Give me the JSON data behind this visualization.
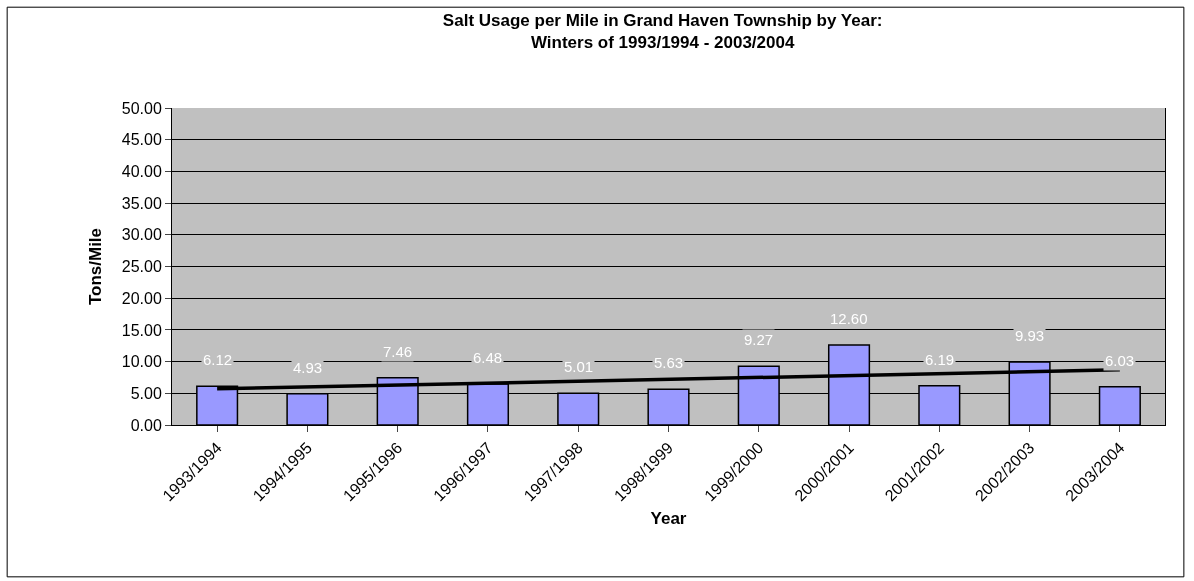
{
  "chart_data": {
    "type": "bar",
    "title": "Salt Usage per Mile in Grand Haven Township by Year:\nWinters of 1993/1994 - 2003/2004",
    "xlabel": "Year",
    "ylabel": "Tons/Mile",
    "categories": [
      "1993/1994",
      "1994/1995",
      "1995/1996",
      "1996/1997",
      "1997/1998",
      "1998/1999",
      "1999/2000",
      "2000/2001",
      "2001/2002",
      "2002/2003",
      "2003/2004"
    ],
    "series": [
      {
        "color": "#9999ff",
        "values": [
          6.12,
          4.93,
          7.46,
          6.48,
          5.01,
          5.63,
          9.27,
          12.6,
          6.19,
          9.93,
          6.03
        ],
        "value_labels": [
          "6.12",
          "4.93",
          "7.46",
          "6.48",
          "5.01",
          "5.63",
          "9.27",
          "12.60",
          "6.19",
          "9.93",
          "6.03"
        ]
      },
      {
        "type": "line",
        "color": "#000000",
        "x": [
          "1993/1994",
          "2003/2004"
        ],
        "values": [
          5.7,
          8.7
        ]
      }
    ],
    "ylim": [
      0,
      50
    ],
    "yticks": [
      {
        "value": 0,
        "label": "0.00"
      },
      {
        "value": 5,
        "label": "5.00"
      },
      {
        "value": 10,
        "label": "10.00"
      },
      {
        "value": 15,
        "label": "15.00"
      },
      {
        "value": 20,
        "label": "20.00"
      },
      {
        "value": 25,
        "label": "25.00"
      },
      {
        "value": 30,
        "label": "30.00"
      },
      {
        "value": 35,
        "label": "35.00"
      },
      {
        "value": 40,
        "label": "40.00"
      },
      {
        "value": 45,
        "label": "45.00"
      },
      {
        "value": 50,
        "label": "50.00"
      }
    ],
    "grid": "y"
  }
}
